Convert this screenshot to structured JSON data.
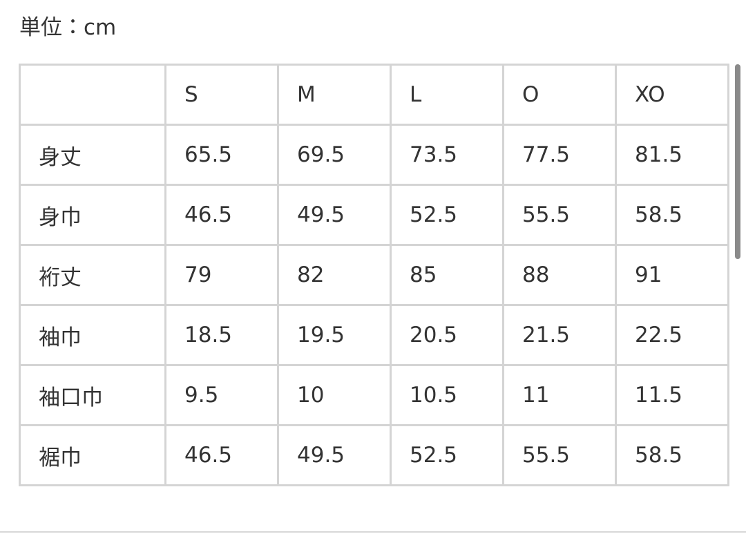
{
  "unit_label": "単位：cm",
  "table": {
    "columns": [
      "S",
      "M",
      "L",
      "O",
      "XO"
    ],
    "rows": [
      {
        "label": "身丈",
        "values": [
          "65.5",
          "69.5",
          "73.5",
          "77.5",
          "81.5"
        ]
      },
      {
        "label": "身巾",
        "values": [
          "46.5",
          "49.5",
          "52.5",
          "55.5",
          "58.5"
        ]
      },
      {
        "label": "裄丈",
        "values": [
          "79",
          "82",
          "85",
          "88",
          "91"
        ]
      },
      {
        "label": "袖巾",
        "values": [
          "18.5",
          "19.5",
          "20.5",
          "21.5",
          "22.5"
        ]
      },
      {
        "label": "袖口巾",
        "values": [
          "9.5",
          "10",
          "10.5",
          "11",
          "11.5"
        ]
      },
      {
        "label": "裾巾",
        "values": [
          "46.5",
          "49.5",
          "52.5",
          "55.5",
          "58.5"
        ]
      }
    ]
  }
}
